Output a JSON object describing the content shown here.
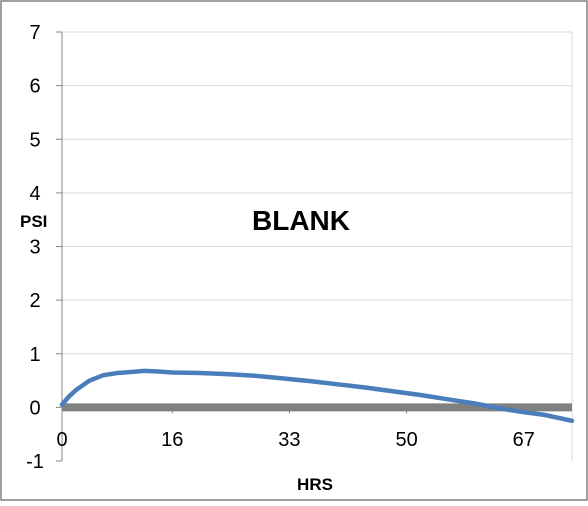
{
  "chart_data": {
    "type": "line",
    "title": "",
    "xlabel": "HRS",
    "ylabel": "PSI",
    "annotation": "BLANK",
    "xlim": [
      0,
      74
    ],
    "ylim": [
      -1,
      7
    ],
    "xticks": [
      0,
      16,
      33,
      50,
      67
    ],
    "xtick_labels": [
      "0",
      "16",
      "33",
      "50",
      "67"
    ],
    "yticks": [
      -1,
      0,
      1,
      2,
      3,
      4,
      5,
      6,
      7
    ],
    "ytick_labels": [
      "-1",
      "0",
      "1",
      "2",
      "3",
      "4",
      "5",
      "6",
      "7"
    ],
    "grid": true,
    "legend": "none",
    "colors": {
      "series": "#4a7ebb",
      "reference": "#808080",
      "grid": "#d9d9d9",
      "border": "#808080"
    },
    "series": [
      {
        "x": [
          0,
          1,
          2,
          4,
          6,
          8,
          10,
          12,
          14,
          16,
          20,
          24,
          28,
          32,
          36,
          40,
          44,
          48,
          52,
          56,
          60,
          64,
          67,
          70,
          74
        ],
        "y": [
          0.05,
          0.2,
          0.32,
          0.5,
          0.6,
          0.64,
          0.66,
          0.68,
          0.67,
          0.65,
          0.64,
          0.62,
          0.59,
          0.54,
          0.49,
          0.43,
          0.37,
          0.3,
          0.23,
          0.15,
          0.07,
          -0.03,
          -0.09,
          -0.14,
          -0.25
        ]
      },
      {
        "x": [
          0,
          74
        ],
        "y": [
          0,
          0
        ]
      }
    ]
  }
}
